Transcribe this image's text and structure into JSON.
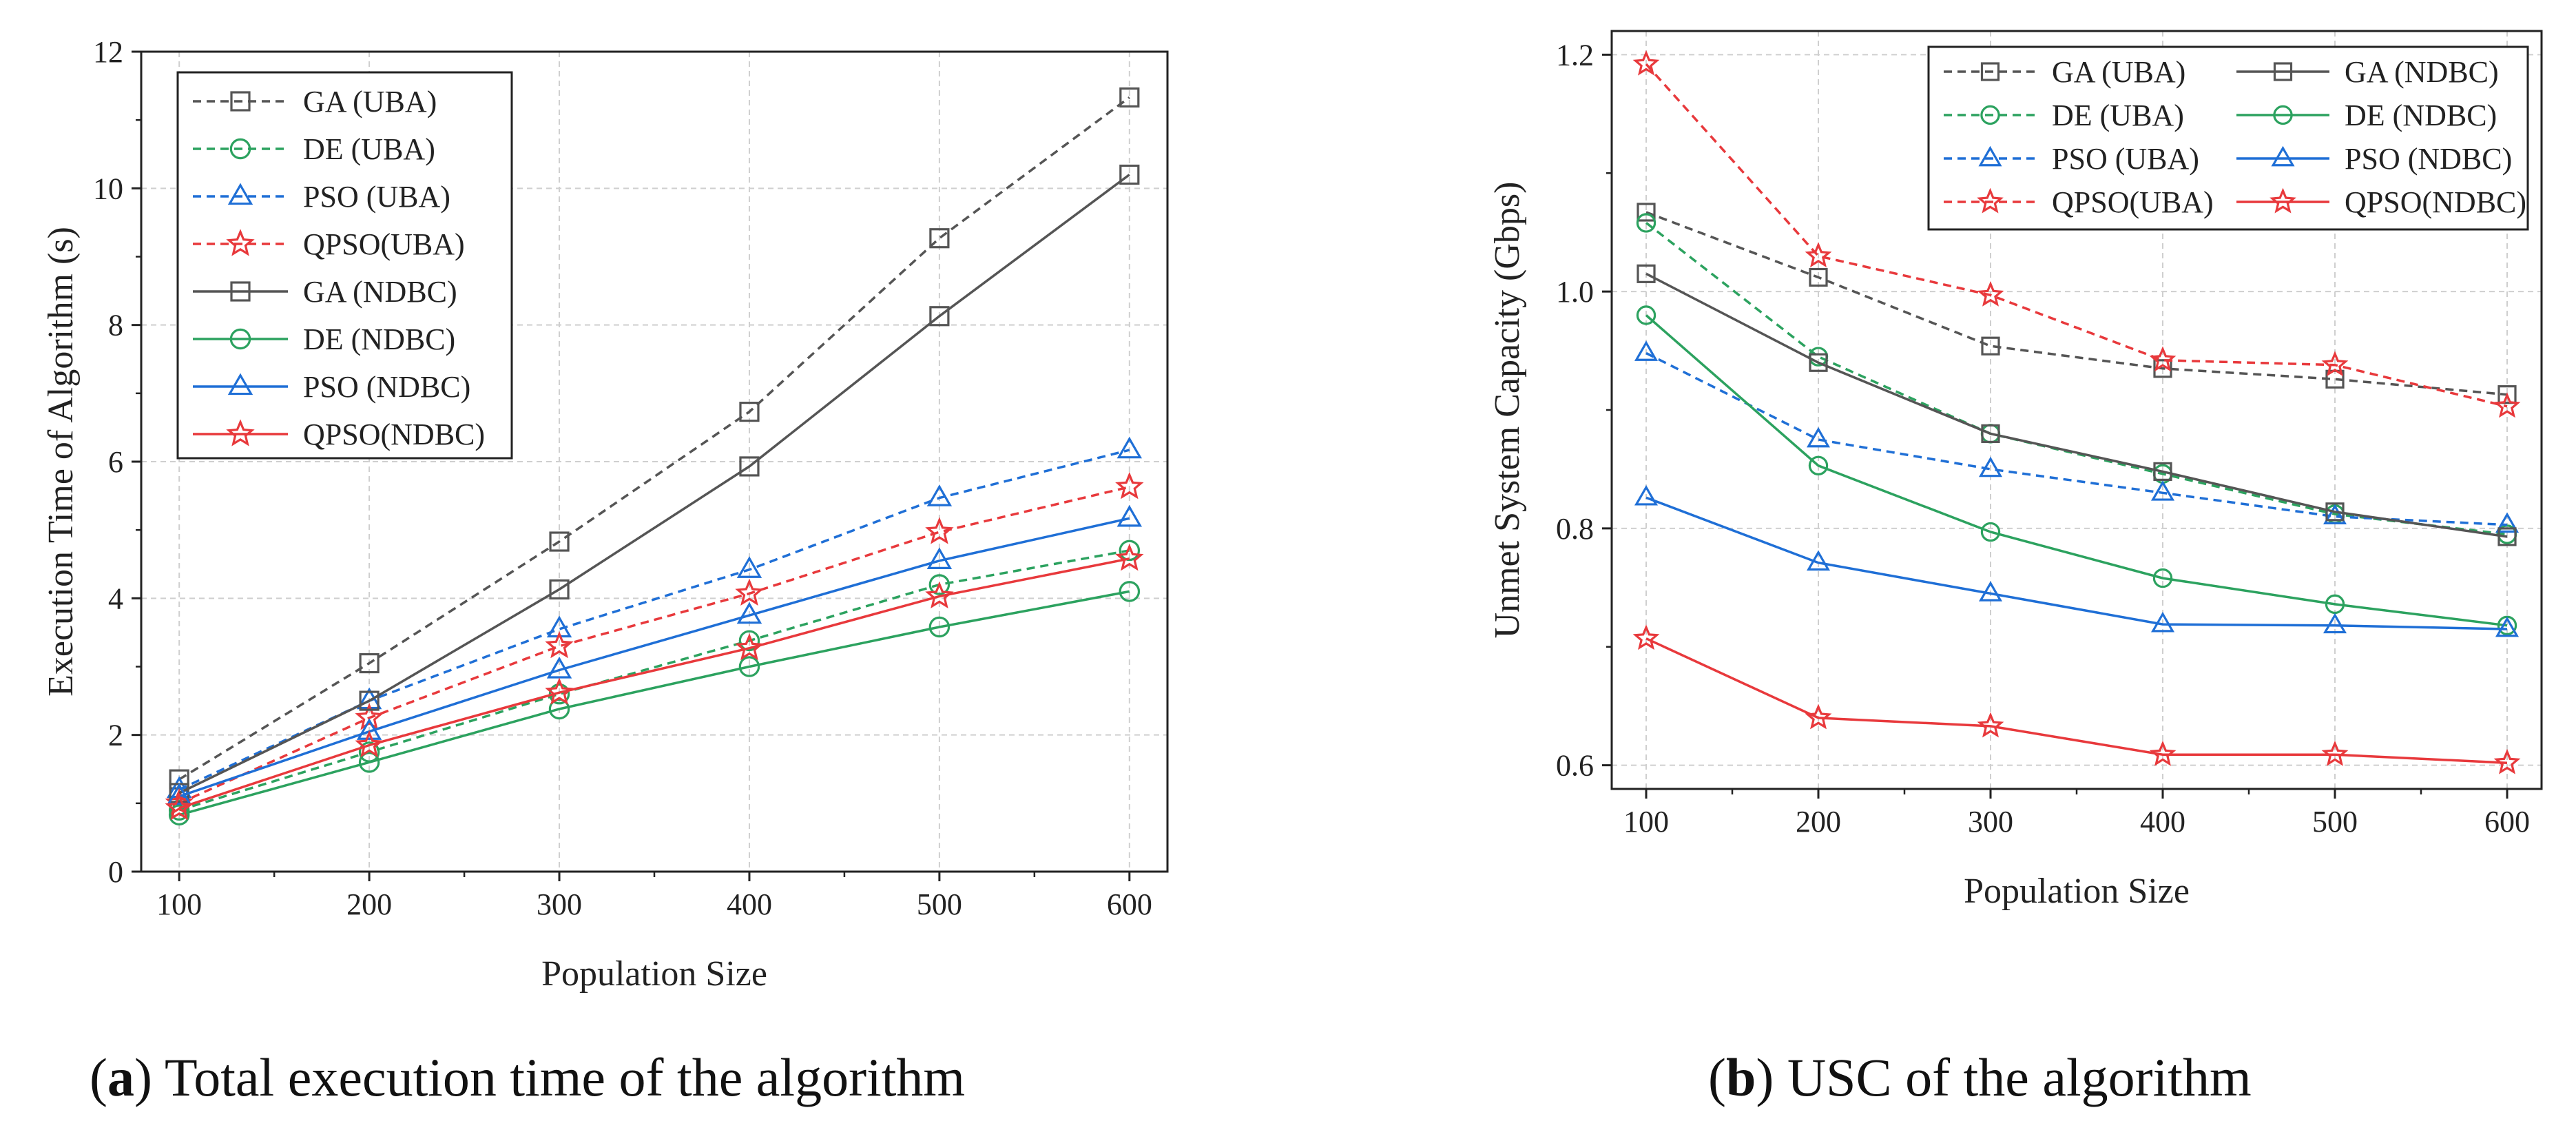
{
  "chart_data": [
    {
      "type": "line",
      "caption_letter": "a",
      "caption_text": ") Total execution time of the algorithm",
      "xlabel": "Population Size",
      "ylabel": "Execution Time of Algorithm (s)",
      "x": [
        100,
        200,
        300,
        400,
        500,
        600
      ],
      "xlim": [
        80,
        620
      ],
      "ylim": [
        0,
        12
      ],
      "xticks": [
        100,
        200,
        300,
        400,
        500,
        600
      ],
      "xtick_labels": [
        "100",
        "200",
        "300",
        "400",
        "500",
        "600"
      ],
      "yticks": [
        0,
        2,
        4,
        6,
        8,
        10,
        12
      ],
      "ytick_labels": [
        "0",
        "2",
        "4",
        "6",
        "8",
        "10",
        "12"
      ],
      "grid": true,
      "legend_position": "top-left",
      "series": [
        {
          "name": "GA  (UBA)",
          "color": "#555555",
          "marker": "square",
          "dashed": true,
          "values": [
            1.35,
            3.05,
            4.83,
            6.73,
            9.27,
            11.33
          ]
        },
        {
          "name": "DE  (UBA)",
          "color": "#2ca25f",
          "marker": "circle",
          "dashed": true,
          "values": [
            0.9,
            1.75,
            2.6,
            3.38,
            4.2,
            4.7
          ]
        },
        {
          "name": "PSO (UBA)",
          "color": "#1f6fd6",
          "marker": "triangle",
          "dashed": true,
          "values": [
            1.2,
            2.5,
            3.55,
            4.42,
            5.47,
            6.17
          ]
        },
        {
          "name": "QPSO(UBA)",
          "color": "#e8393c",
          "marker": "star",
          "dashed": true,
          "values": [
            1.0,
            2.25,
            3.3,
            4.07,
            4.97,
            5.63
          ]
        },
        {
          "name": "GA  (NDBC)",
          "color": "#555555",
          "marker": "square",
          "dashed": false,
          "values": [
            1.15,
            2.5,
            4.13,
            5.93,
            8.13,
            10.2
          ]
        },
        {
          "name": "DE  (NDBC)",
          "color": "#2ca25f",
          "marker": "circle",
          "dashed": false,
          "values": [
            0.83,
            1.6,
            2.38,
            3.0,
            3.58,
            4.1
          ]
        },
        {
          "name": "PSO (NDBC)",
          "color": "#1f6fd6",
          "marker": "triangle",
          "dashed": false,
          "values": [
            1.1,
            2.05,
            2.95,
            3.75,
            4.55,
            5.17
          ]
        },
        {
          "name": "QPSO(NDBC)",
          "color": "#e8393c",
          "marker": "star",
          "dashed": false,
          "values": [
            0.93,
            1.85,
            2.62,
            3.27,
            4.03,
            4.58
          ]
        }
      ]
    },
    {
      "type": "line",
      "caption_letter": "b",
      "caption_text": ") USC of the algorithm",
      "xlabel": "Population Size",
      "ylabel": "Unmet System Capacity (Gbps)",
      "x": [
        100,
        200,
        300,
        400,
        500,
        600
      ],
      "xlim": [
        80,
        620
      ],
      "ylim": [
        0.58,
        1.22
      ],
      "xticks": [
        100,
        200,
        300,
        400,
        500,
        600
      ],
      "xtick_labels": [
        "100",
        "200",
        "300",
        "400",
        "500",
        "600"
      ],
      "yticks": [
        0.6,
        0.8,
        1.0,
        1.2
      ],
      "ytick_labels": [
        "0.6",
        "0.8",
        "1.0",
        "1.2"
      ],
      "grid": true,
      "legend_position": "top-right",
      "series": [
        {
          "name": "GA  (UBA)",
          "color": "#555555",
          "marker": "square",
          "dashed": true,
          "values": [
            1.067,
            1.012,
            0.954,
            0.935,
            0.926,
            0.913
          ]
        },
        {
          "name": "DE  (UBA)",
          "color": "#2ca25f",
          "marker": "circle",
          "dashed": true,
          "values": [
            1.058,
            0.945,
            0.88,
            0.846,
            0.812,
            0.795
          ]
        },
        {
          "name": "PSO (UBA)",
          "color": "#1f6fd6",
          "marker": "triangle",
          "dashed": true,
          "values": [
            0.948,
            0.875,
            0.85,
            0.83,
            0.81,
            0.803
          ]
        },
        {
          "name": "QPSO(UBA)",
          "color": "#e8393c",
          "marker": "star",
          "dashed": true,
          "values": [
            1.192,
            1.03,
            0.997,
            0.942,
            0.938,
            0.903
          ]
        },
        {
          "name": "GA  (NDBC)",
          "color": "#555555",
          "marker": "square",
          "dashed": false,
          "values": [
            1.015,
            0.94,
            0.88,
            0.848,
            0.814,
            0.793
          ]
        },
        {
          "name": "DE  (NDBC)",
          "color": "#2ca25f",
          "marker": "circle",
          "dashed": false,
          "values": [
            0.98,
            0.853,
            0.797,
            0.758,
            0.736,
            0.718
          ]
        },
        {
          "name": "PSO (NDBC)",
          "color": "#1f6fd6",
          "marker": "triangle",
          "dashed": false,
          "values": [
            0.826,
            0.771,
            0.745,
            0.719,
            0.718,
            0.715
          ]
        },
        {
          "name": "QPSO(NDBC)",
          "color": "#e8393c",
          "marker": "star",
          "dashed": false,
          "values": [
            0.707,
            0.64,
            0.633,
            0.609,
            0.609,
            0.602
          ]
        }
      ]
    }
  ]
}
